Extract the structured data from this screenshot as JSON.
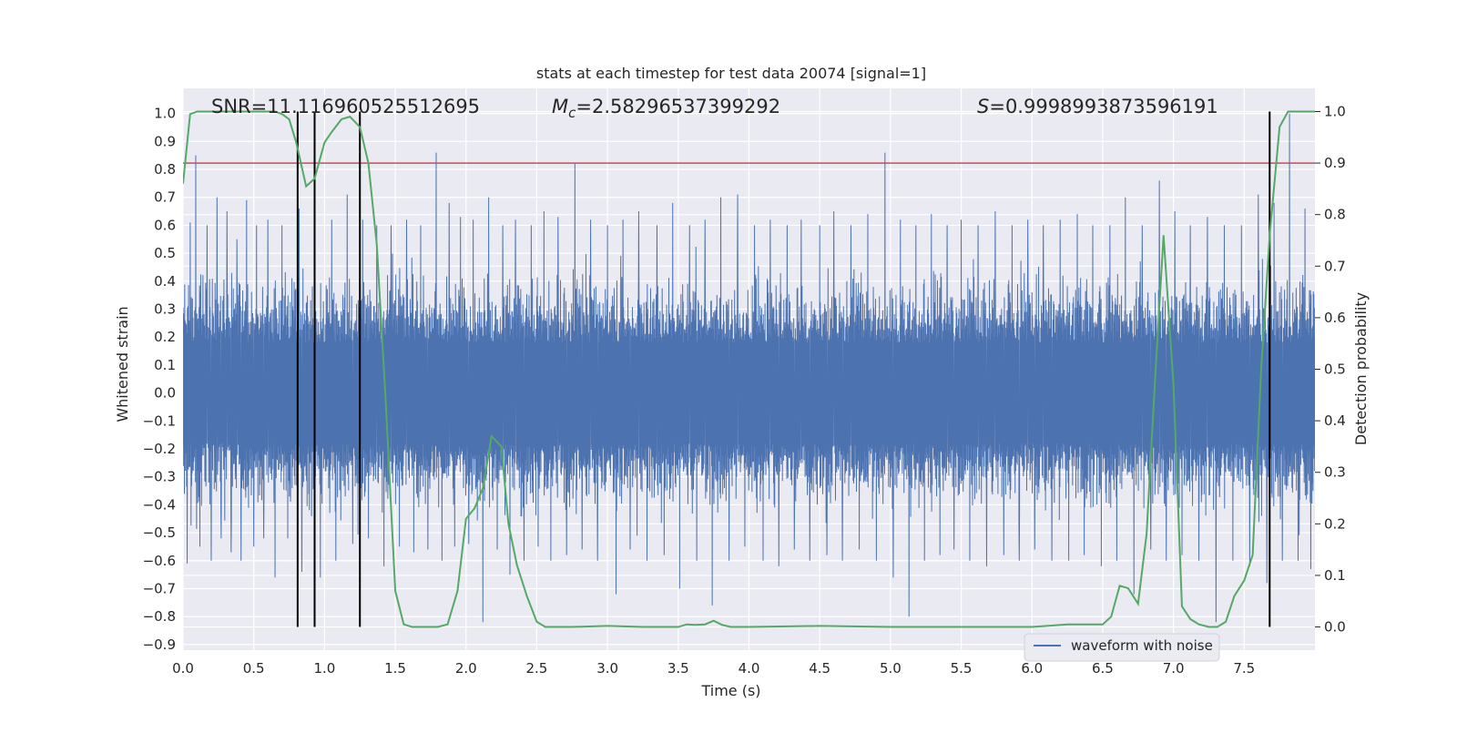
{
  "chart_data": {
    "type": "line",
    "title": "stats at each timestep for test data 20074 [signal=1]",
    "xlabel": "Time (s)",
    "ylabel": "Whitened strain",
    "ylabel_right": "Detection probability",
    "xlim": [
      0.0,
      8.0
    ],
    "ylim": [
      -0.92,
      1.09
    ],
    "ylim_right": [
      -0.045,
      1.045
    ],
    "xticks": [
      "0.0",
      "0.5",
      "1.0",
      "1.5",
      "2.0",
      "2.5",
      "3.0",
      "3.5",
      "4.0",
      "4.5",
      "5.0",
      "5.5",
      "6.0",
      "6.5",
      "7.0",
      "7.5"
    ],
    "yticks": [
      "1.0",
      "0.9",
      "0.8",
      "0.7",
      "0.6",
      "0.5",
      "0.4",
      "0.3",
      "0.2",
      "0.1",
      "0.0",
      "−0.1",
      "−0.2",
      "−0.3",
      "−0.4",
      "−0.5",
      "−0.6",
      "−0.7",
      "−0.8",
      "−0.9"
    ],
    "yticks_right": [
      "1.0",
      "0.9",
      "0.8",
      "0.7",
      "0.6",
      "0.5",
      "0.4",
      "0.3",
      "0.2",
      "0.1",
      "0.0"
    ],
    "annotations": {
      "snr": "SNR=11.116960525512695",
      "mc_symbol": "M",
      "mc_sub": "c",
      "mc_value": "=2.58296537399292",
      "s_symbol": "S",
      "s_value": "=0.9998993873596191"
    },
    "legend": {
      "label": "waveform with noise",
      "placement": "lower-right"
    },
    "grid": true,
    "colors": {
      "background": "#eaeaf2",
      "grid": "#ffffff",
      "waveform": "#4c72b0",
      "probability": "#55a868",
      "threshold": "#c44e52",
      "markers": "#000000"
    },
    "threshold_right": 0.9,
    "vlines_x": [
      0.81,
      0.93,
      1.25,
      7.68
    ],
    "vline_range_right": [
      0.0,
      1.0
    ],
    "series": [
      {
        "name": "waveform with noise",
        "axis": "left",
        "description_envelope": true,
        "peaks_x": [
          0.05,
          0.09,
          0.17,
          0.24,
          0.31,
          0.38,
          0.45,
          0.52,
          0.6,
          0.7,
          0.82,
          0.93,
          1.05,
          1.16,
          1.27,
          1.37,
          1.47,
          1.58,
          1.68,
          1.79,
          1.88,
          1.96,
          2.05,
          2.16,
          2.26,
          2.35,
          2.46,
          2.55,
          2.65,
          2.77,
          2.88,
          3.0,
          3.11,
          3.22,
          3.35,
          3.46,
          3.58,
          3.69,
          3.8,
          3.92,
          4.04,
          4.15,
          4.27,
          4.37,
          4.5,
          4.6,
          4.72,
          4.84,
          4.96,
          5.07,
          5.18,
          5.29,
          5.4,
          5.5,
          5.62,
          5.74,
          5.86,
          5.97,
          6.08,
          6.2,
          6.32,
          6.43,
          6.55,
          6.66,
          6.78,
          6.9,
          7.01,
          7.12,
          7.24,
          7.36,
          7.48,
          7.6,
          7.71,
          7.82,
          7.93
        ],
        "peaks_y": [
          0.61,
          0.85,
          0.6,
          0.7,
          0.65,
          0.55,
          0.69,
          0.6,
          0.62,
          0.6,
          0.66,
          0.66,
          0.62,
          0.71,
          0.62,
          0.6,
          0.6,
          0.62,
          0.6,
          0.86,
          0.68,
          0.63,
          0.62,
          0.7,
          0.6,
          0.62,
          0.6,
          0.65,
          0.63,
          0.82,
          0.62,
          0.6,
          0.62,
          0.65,
          0.6,
          0.68,
          0.6,
          0.62,
          0.7,
          0.71,
          0.6,
          0.62,
          0.6,
          0.62,
          0.6,
          0.65,
          0.6,
          0.64,
          0.86,
          0.62,
          0.6,
          0.64,
          0.6,
          0.62,
          0.6,
          0.65,
          0.6,
          0.62,
          0.6,
          0.62,
          0.64,
          0.6,
          0.6,
          0.7,
          0.6,
          0.76,
          0.65,
          0.6,
          0.63,
          0.6,
          0.6,
          0.71,
          0.68,
          1.0,
          0.66
        ],
        "troughs_x": [
          0.03,
          0.12,
          0.2,
          0.27,
          0.34,
          0.41,
          0.5,
          0.57,
          0.65,
          0.74,
          0.84,
          0.97,
          1.08,
          1.2,
          1.31,
          1.42,
          1.53,
          1.63,
          1.73,
          1.83,
          1.92,
          2.02,
          2.12,
          2.22,
          2.31,
          2.41,
          2.51,
          2.6,
          2.71,
          2.82,
          2.93,
          3.06,
          3.16,
          3.28,
          3.4,
          3.51,
          3.63,
          3.74,
          3.86,
          3.97,
          4.1,
          4.21,
          4.32,
          4.43,
          4.55,
          4.66,
          4.78,
          4.9,
          5.02,
          5.13,
          5.24,
          5.35,
          5.45,
          5.56,
          5.68,
          5.8,
          5.91,
          6.02,
          6.14,
          6.26,
          6.37,
          6.49,
          6.6,
          6.72,
          6.84,
          6.95,
          7.06,
          7.18,
          7.3,
          7.42,
          7.54,
          7.66,
          7.77,
          7.88,
          7.97
        ],
        "troughs_y": [
          -0.61,
          -0.55,
          -0.6,
          -0.52,
          -0.57,
          -0.6,
          -0.55,
          -0.52,
          -0.66,
          -0.52,
          -0.64,
          -0.66,
          -0.6,
          -0.54,
          -0.52,
          -0.62,
          -0.55,
          -0.57,
          -0.56,
          -0.6,
          -0.55,
          -0.54,
          -0.82,
          -0.56,
          -0.65,
          -0.6,
          -0.55,
          -0.6,
          -0.58,
          -0.56,
          -0.6,
          -0.72,
          -0.56,
          -0.6,
          -0.58,
          -0.7,
          -0.6,
          -0.76,
          -0.6,
          -0.55,
          -0.6,
          -0.62,
          -0.56,
          -0.6,
          -0.58,
          -0.6,
          -0.56,
          -0.6,
          -0.66,
          -0.8,
          -0.6,
          -0.58,
          -0.56,
          -0.6,
          -0.62,
          -0.58,
          -0.6,
          -0.56,
          -0.6,
          -0.6,
          -0.58,
          -0.62,
          -0.6,
          -0.72,
          -0.56,
          -0.6,
          -0.58,
          -0.6,
          -0.82,
          -0.6,
          -0.62,
          -0.68,
          -0.6,
          -0.6,
          -0.63
        ]
      },
      {
        "name": "",
        "axis": "right",
        "x": [
          0.0,
          0.05,
          0.1,
          0.2,
          0.3,
          0.4,
          0.5,
          0.6,
          0.65,
          0.7,
          0.75,
          0.8,
          0.87,
          0.93,
          1.0,
          1.05,
          1.12,
          1.18,
          1.25,
          1.31,
          1.37,
          1.43,
          1.5,
          1.56,
          1.62,
          1.7,
          1.8,
          1.87,
          1.94,
          2.0,
          2.06,
          2.12,
          2.18,
          2.25,
          2.3,
          2.36,
          2.43,
          2.5,
          2.56,
          2.62,
          2.75,
          3.0,
          3.25,
          3.5,
          3.56,
          3.62,
          3.69,
          3.75,
          3.81,
          3.87,
          4.0,
          4.5,
          5.0,
          5.5,
          6.0,
          6.25,
          6.5,
          6.56,
          6.62,
          6.68,
          6.75,
          6.81,
          6.87,
          6.93,
          7.0,
          7.06,
          7.12,
          7.18,
          7.25,
          7.31,
          7.37,
          7.43,
          7.5,
          7.56,
          7.62,
          7.68,
          7.75,
          7.81,
          7.87,
          7.93,
          8.0
        ],
        "y": [
          0.86,
          0.995,
          1.0,
          1.0,
          1.0,
          1.0,
          1.0,
          1.0,
          1.0,
          0.995,
          0.985,
          0.94,
          0.855,
          0.87,
          0.94,
          0.96,
          0.985,
          0.99,
          0.97,
          0.9,
          0.74,
          0.45,
          0.07,
          0.005,
          0.0,
          0.0,
          0.0,
          0.005,
          0.07,
          0.21,
          0.23,
          0.27,
          0.37,
          0.35,
          0.2,
          0.12,
          0.06,
          0.01,
          0.0,
          0.0,
          0.0,
          0.002,
          0.0,
          0.0,
          0.005,
          0.004,
          0.005,
          0.012,
          0.004,
          0.0,
          0.0,
          0.002,
          0.0,
          0.0,
          0.0,
          0.005,
          0.005,
          0.02,
          0.08,
          0.075,
          0.045,
          0.18,
          0.48,
          0.76,
          0.47,
          0.04,
          0.015,
          0.005,
          0.0,
          0.0,
          0.01,
          0.06,
          0.09,
          0.14,
          0.5,
          0.76,
          0.97,
          1.0,
          1.0,
          1.0,
          1.0
        ]
      }
    ]
  }
}
